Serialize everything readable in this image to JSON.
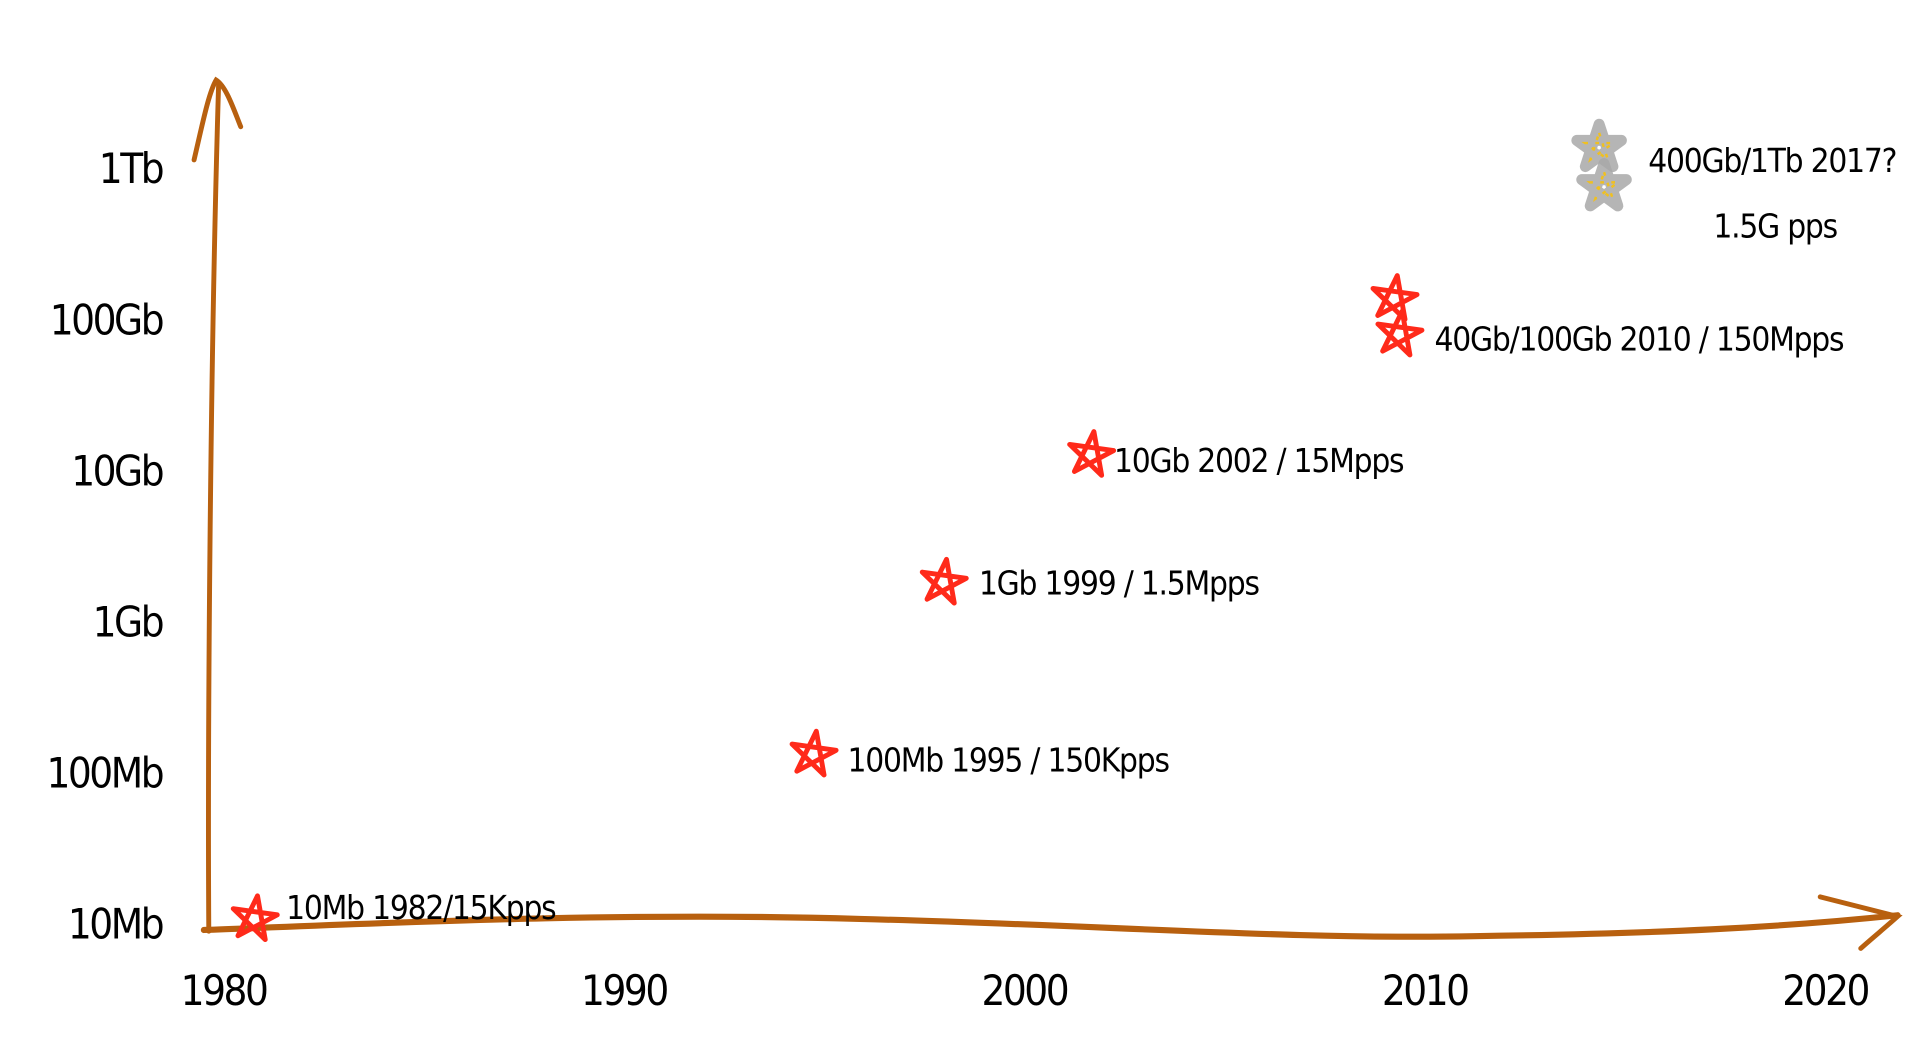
{
  "chart_data": {
    "type": "scatter",
    "title": "",
    "xlabel": "",
    "ylabel": "",
    "x_scale": "linear",
    "y_scale": "log",
    "xlim": [
      1980,
      2020
    ],
    "ylim_gbps": [
      0.01,
      1000
    ],
    "grid": false,
    "x_ticks": [
      {
        "value": 1980,
        "label": "1980"
      },
      {
        "value": 1990,
        "label": "1990"
      },
      {
        "value": 2000,
        "label": "2000"
      },
      {
        "value": 2010,
        "label": "2010"
      },
      {
        "value": 2020,
        "label": "2020"
      }
    ],
    "y_ticks": [
      {
        "value": 0.01,
        "label": "10Mb"
      },
      {
        "value": 0.1,
        "label": "100Mb"
      },
      {
        "value": 1,
        "label": "1Gb"
      },
      {
        "value": 10,
        "label": "10Gb"
      },
      {
        "value": 100,
        "label": "100Gb"
      },
      {
        "value": 1000,
        "label": "1Tb"
      }
    ],
    "points": [
      {
        "year": 1981,
        "gbps": 0.01,
        "status": "actual"
      },
      {
        "year": 1994.7,
        "gbps": 0.1,
        "status": "actual"
      },
      {
        "year": 1998,
        "gbps": 1,
        "status": "actual"
      },
      {
        "year": 2001.7,
        "gbps": 10,
        "status": "actual"
      },
      {
        "year": 2009.2,
        "gbps": 40,
        "status": "actual"
      },
      {
        "year": 2009.2,
        "gbps": 100,
        "status": "actual"
      },
      {
        "year": 2014.4,
        "gbps": 400,
        "status": "projected"
      },
      {
        "year": 2014.4,
        "gbps": 1000,
        "status": "projected"
      }
    ],
    "annotations": [
      {
        "text": "10Mb 1982/15Kpps",
        "year": 1981,
        "gbps": 0.01
      },
      {
        "text": "100Mb 1995 / 150Kpps",
        "year": 1994.7,
        "gbps": 0.1
      },
      {
        "text": "1Gb 1999 / 1.5Mpps",
        "year": 1998,
        "gbps": 1
      },
      {
        "text": "10Gb 2002 / 15Mpps",
        "year": 2001.7,
        "gbps": 10
      },
      {
        "text": "40Gb/100Gb 2010 / 150Mpps",
        "year": 2009.2,
        "gbps": 60
      },
      {
        "text": "400Gb/1Tb 2017?",
        "year": 2014.4,
        "gbps": 1000
      },
      {
        "text": "1.5G pps",
        "year": 2014.4,
        "gbps": 400
      }
    ],
    "colors": {
      "axis": "#b8600f",
      "actual": "#ff2a1a",
      "projected": "#a8a8a8",
      "projected_accent": "#f0c020"
    }
  }
}
